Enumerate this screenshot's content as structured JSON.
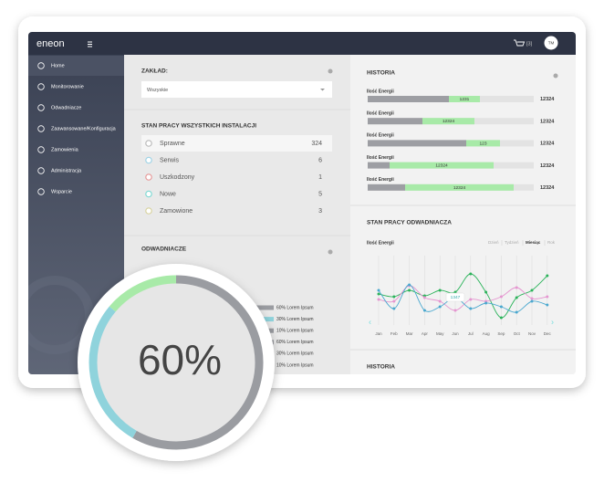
{
  "topbar": {
    "logo": "eneon",
    "cart_count": "[3]",
    "avatar": "TM"
  },
  "sidebar": {
    "items": [
      "Home",
      "Monitorowanie",
      "Odwadniacze",
      "Zaawansowane/Konfiguracja",
      "Zamowienia",
      "Administracja",
      "Wsparcie"
    ]
  },
  "plant": {
    "label": "ZAKŁAD:",
    "selected": "Wszyskie"
  },
  "status": {
    "title": "STAN PRACY WSZYSTKICH INSTALACJI",
    "rows": [
      {
        "label": "Sprawne",
        "count": 324
      },
      {
        "label": "Serwis",
        "count": 6
      },
      {
        "label": "Uszkodzony",
        "count": 1
      },
      {
        "label": "Nowe",
        "count": 5
      },
      {
        "label": "Zamowione",
        "count": 3
      }
    ]
  },
  "drains": {
    "title": "ODWADNIACZE",
    "gauge": "60%",
    "items": [
      "60% Lorem Ipsum",
      "30% Lorem Ipsum",
      "10% Lorem Ipsum",
      "60% Lorem Ipsum",
      "30% Lorem Ipsum",
      "10% Lorem Ipsum"
    ]
  },
  "history": {
    "title": "HISTORIA",
    "rows": [
      {
        "label": "Ilość Energii",
        "bar": 1231,
        "total": 12324
      },
      {
        "label": "Ilość Energii",
        "bar": 12324,
        "total": 12324
      },
      {
        "label": "Ilość Energii",
        "bar": 123,
        "total": 12324
      },
      {
        "label": "Ilość Energii",
        "bar": 12324,
        "total": 12324
      },
      {
        "label": "Ilość Energii",
        "bar": 12324,
        "total": 12324
      }
    ]
  },
  "trap_status": {
    "title": "STAN PRACY ODWADNIACZA",
    "metric": "Ilość Energii",
    "tabs": [
      "Dzień",
      "Tydzień",
      "Miesiąc",
      "Rok"
    ],
    "months": [
      "Jan",
      "Feb",
      "Mar",
      "Apr",
      "May",
      "Jun",
      "Jul",
      "Aug",
      "Sep",
      "Oct",
      "Nov",
      "Dec"
    ],
    "tooltip": 1347
  },
  "history2": {
    "title": "HISTORIA"
  }
}
